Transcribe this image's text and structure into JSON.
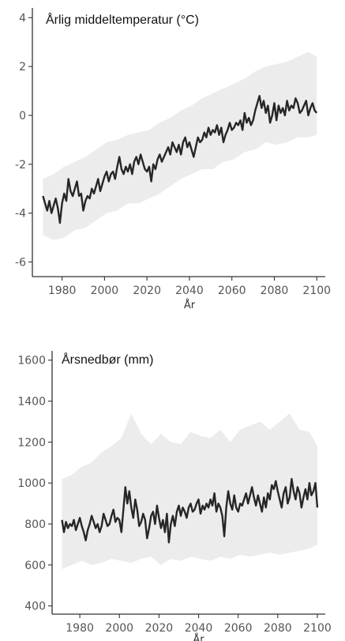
{
  "chart_data": [
    {
      "type": "line",
      "title": "Årlig middeltemperatur (°C)",
      "xlabel": "År",
      "ylabel": "",
      "xlim": [
        1966,
        2104
      ],
      "ylim": [
        -6.6,
        4.4
      ],
      "xticks": [
        1980,
        2000,
        2020,
        2040,
        2060,
        2080,
        2100
      ],
      "yticks": [
        4,
        2,
        0,
        -2,
        -4,
        -6
      ],
      "grid": false,
      "legend": "none",
      "colors": {
        "line": "#262626",
        "band": "#ececec"
      },
      "band": {
        "x": [
          1971,
          1976,
          1981,
          1986,
          1991,
          1996,
          2001,
          2006,
          2011,
          2016,
          2021,
          2026,
          2031,
          2036,
          2041,
          2046,
          2051,
          2056,
          2061,
          2066,
          2071,
          2076,
          2081,
          2086,
          2091,
          2096,
          2100
        ],
        "lower": [
          -4.9,
          -5.1,
          -5.0,
          -4.7,
          -4.6,
          -4.3,
          -4.0,
          -3.9,
          -3.6,
          -3.6,
          -3.4,
          -3.2,
          -2.9,
          -2.6,
          -2.4,
          -2.2,
          -2.2,
          -1.9,
          -1.8,
          -1.5,
          -1.4,
          -1.1,
          -1.2,
          -1.1,
          -0.9,
          -0.9,
          -0.8
        ],
        "upper": [
          -2.6,
          -2.4,
          -2.1,
          -1.9,
          -1.7,
          -1.4,
          -1.1,
          -1.0,
          -0.8,
          -0.7,
          -0.6,
          -0.3,
          -0.1,
          0.2,
          0.4,
          0.7,
          0.9,
          1.1,
          1.3,
          1.5,
          1.8,
          2.0,
          2.1,
          2.2,
          2.4,
          2.6,
          2.4
        ]
      },
      "series": [
        {
          "x": [
            1971,
            1972,
            1973,
            1974,
            1975,
            1976,
            1977,
            1978,
            1979,
            1980,
            1981,
            1982,
            1983,
            1984,
            1985,
            1986,
            1987,
            1988,
            1989,
            1990,
            1991,
            1992,
            1993,
            1994,
            1995,
            1996,
            1997,
            1998,
            1999,
            2000,
            2001,
            2002,
            2003,
            2004,
            2005,
            2006,
            2007,
            2008,
            2009,
            2010,
            2011,
            2012,
            2013,
            2014,
            2015,
            2016,
            2017,
            2018,
            2019,
            2020,
            2021,
            2022,
            2023,
            2024,
            2025,
            2026,
            2027,
            2028,
            2029,
            2030,
            2031,
            2032,
            2033,
            2034,
            2035,
            2036,
            2037,
            2038,
            2039,
            2040,
            2041,
            2042,
            2043,
            2044,
            2045,
            2046,
            2047,
            2048,
            2049,
            2050,
            2051,
            2052,
            2053,
            2054,
            2055,
            2056,
            2057,
            2058,
            2059,
            2060,
            2061,
            2062,
            2063,
            2064,
            2065,
            2066,
            2067,
            2068,
            2069,
            2070,
            2071,
            2072,
            2073,
            2074,
            2075,
            2076,
            2077,
            2078,
            2079,
            2080,
            2081,
            2082,
            2083,
            2084,
            2085,
            2086,
            2087,
            2088,
            2089,
            2090,
            2091,
            2092,
            2093,
            2094,
            2095,
            2096,
            2097,
            2098,
            2099,
            2100
          ],
          "values": [
            -3.3,
            -3.6,
            -3.9,
            -3.5,
            -4.0,
            -3.7,
            -3.4,
            -3.8,
            -4.4,
            -3.6,
            -3.2,
            -3.5,
            -2.6,
            -3.1,
            -3.3,
            -3.0,
            -2.7,
            -3.3,
            -3.2,
            -3.9,
            -3.5,
            -3.3,
            -3.4,
            -3.0,
            -3.2,
            -2.9,
            -2.6,
            -3.1,
            -2.8,
            -2.5,
            -2.3,
            -2.7,
            -2.4,
            -2.3,
            -2.6,
            -2.1,
            -1.7,
            -2.2,
            -2.4,
            -2.1,
            -2.3,
            -2.0,
            -2.4,
            -1.9,
            -1.7,
            -2.0,
            -1.6,
            -1.9,
            -2.2,
            -2.3,
            -2.1,
            -2.7,
            -2.0,
            -2.2,
            -1.8,
            -1.6,
            -1.9,
            -1.7,
            -1.5,
            -1.3,
            -1.6,
            -1.1,
            -1.3,
            -1.5,
            -1.2,
            -1.6,
            -1.1,
            -0.9,
            -1.3,
            -1.1,
            -1.4,
            -1.7,
            -1.3,
            -0.9,
            -1.1,
            -1.0,
            -0.7,
            -0.9,
            -0.5,
            -0.8,
            -0.6,
            -0.7,
            -0.4,
            -0.8,
            -0.5,
            -1.1,
            -0.8,
            -0.6,
            -0.3,
            -0.6,
            -0.5,
            -0.3,
            -0.4,
            -0.2,
            -0.6,
            0.1,
            -0.3,
            -0.1,
            -0.4,
            -0.2,
            0.2,
            0.5,
            0.8,
            0.3,
            0.6,
            0.1,
            0.4,
            -0.3,
            0.0,
            0.5,
            -0.2,
            0.4,
            0.1,
            0.3,
            0.0,
            0.6,
            0.2,
            0.4,
            0.3,
            0.7,
            0.5,
            0.1,
            0.2,
            0.4,
            0.6,
            0.0,
            0.3,
            0.5,
            0.2,
            0.1
          ]
        }
      ]
    },
    {
      "type": "line",
      "title": "Årsnedbør (mm)",
      "xlabel": "År",
      "ylabel": "",
      "xlim": [
        1966,
        2104
      ],
      "ylim": [
        360,
        1645
      ],
      "xticks": [
        1980,
        2000,
        2020,
        2040,
        2060,
        2080,
        2100
      ],
      "yticks": [
        1600,
        1400,
        1200,
        1000,
        800,
        600,
        400
      ],
      "grid": false,
      "legend": "none",
      "colors": {
        "line": "#262626",
        "band": "#ececec"
      },
      "band": {
        "x": [
          1971,
          1976,
          1981,
          1986,
          1991,
          1996,
          2001,
          2006,
          2011,
          2016,
          2021,
          2026,
          2031,
          2036,
          2041,
          2046,
          2051,
          2056,
          2061,
          2066,
          2071,
          2076,
          2081,
          2086,
          2091,
          2096,
          2100
        ],
        "lower": [
          580,
          600,
          620,
          600,
          610,
          630,
          620,
          610,
          630,
          640,
          600,
          630,
          620,
          640,
          630,
          620,
          640,
          630,
          650,
          640,
          650,
          660,
          650,
          660,
          670,
          680,
          700
        ],
        "upper": [
          1020,
          1040,
          1080,
          1100,
          1150,
          1180,
          1220,
          1340,
          1240,
          1190,
          1240,
          1200,
          1190,
          1250,
          1230,
          1220,
          1260,
          1200,
          1260,
          1280,
          1300,
          1260,
          1300,
          1340,
          1260,
          1250,
          1180
        ]
      },
      "series": [
        {
          "x": [
            1971,
            1972,
            1973,
            1974,
            1975,
            1976,
            1977,
            1978,
            1979,
            1980,
            1981,
            1982,
            1983,
            1984,
            1985,
            1986,
            1987,
            1988,
            1989,
            1990,
            1991,
            1992,
            1993,
            1994,
            1995,
            1996,
            1997,
            1998,
            1999,
            2000,
            2001,
            2002,
            2003,
            2004,
            2005,
            2006,
            2007,
            2008,
            2009,
            2010,
            2011,
            2012,
            2013,
            2014,
            2015,
            2016,
            2017,
            2018,
            2019,
            2020,
            2021,
            2022,
            2023,
            2024,
            2025,
            2026,
            2027,
            2028,
            2029,
            2030,
            2031,
            2032,
            2033,
            2034,
            2035,
            2036,
            2037,
            2038,
            2039,
            2040,
            2041,
            2042,
            2043,
            2044,
            2045,
            2046,
            2047,
            2048,
            2049,
            2050,
            2051,
            2052,
            2053,
            2054,
            2055,
            2056,
            2057,
            2058,
            2059,
            2060,
            2061,
            2062,
            2063,
            2064,
            2065,
            2066,
            2067,
            2068,
            2069,
            2070,
            2071,
            2072,
            2073,
            2074,
            2075,
            2076,
            2077,
            2078,
            2079,
            2080,
            2081,
            2082,
            2083,
            2084,
            2085,
            2086,
            2087,
            2088,
            2089,
            2090,
            2091,
            2092,
            2093,
            2094,
            2095,
            2096,
            2097,
            2098,
            2099,
            2100
          ],
          "values": [
            820,
            760,
            810,
            780,
            800,
            790,
            820,
            770,
            800,
            830,
            790,
            760,
            720,
            770,
            800,
            840,
            810,
            780,
            800,
            760,
            790,
            850,
            820,
            790,
            800,
            840,
            870,
            810,
            830,
            820,
            760,
            870,
            980,
            900,
            960,
            880,
            830,
            920,
            870,
            790,
            810,
            850,
            820,
            730,
            780,
            840,
            860,
            800,
            890,
            830,
            780,
            820,
            760,
            850,
            710,
            800,
            840,
            790,
            860,
            890,
            840,
            880,
            860,
            830,
            880,
            900,
            860,
            870,
            900,
            920,
            850,
            890,
            870,
            900,
            880,
            920,
            890,
            950,
            860,
            900,
            880,
            840,
            740,
            880,
            960,
            900,
            870,
            940,
            880,
            860,
            900,
            890,
            920,
            950,
            900,
            940,
            980,
            930,
            890,
            940,
            900,
            860,
            930,
            880,
            950,
            920,
            990,
            970,
            1010,
            960,
            920,
            880,
            950,
            980,
            900,
            930,
            1020,
            960,
            920,
            980,
            950,
            880,
            930,
            970,
            920,
            1000,
            940,
            960,
            1000,
            880
          ]
        }
      ]
    }
  ]
}
